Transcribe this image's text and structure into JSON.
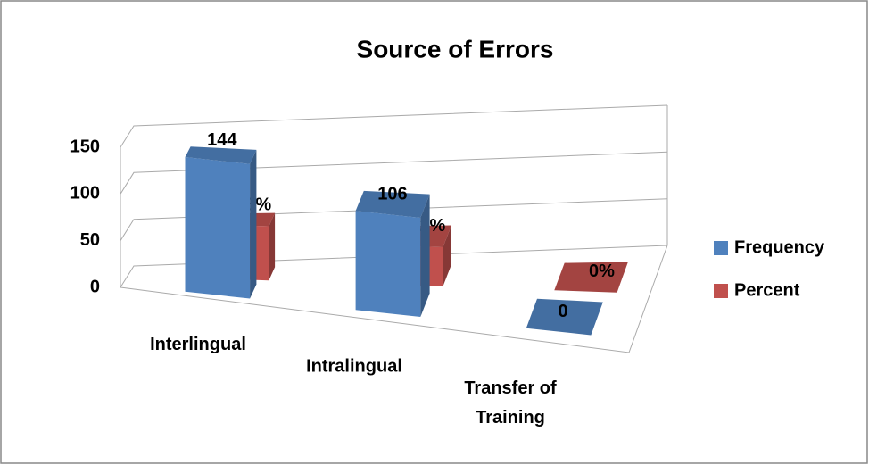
{
  "chart_data": {
    "type": "bar3d",
    "title": "Source of Errors",
    "categories": [
      "Interlingual",
      "Intralingual",
      "Transfer of Training"
    ],
    "series": [
      {
        "name": "Frequency",
        "color": "#4f81bd",
        "values": [
          144,
          106,
          0
        ],
        "value_labels": [
          "144",
          "106",
          "0"
        ]
      },
      {
        "name": "Percent",
        "color": "#c0504d",
        "values": [
          58,
          42,
          0
        ],
        "value_labels": [
          "58%",
          "42%",
          "0%"
        ]
      }
    ],
    "ylim": [
      0,
      150
    ],
    "yticks": [
      0,
      50,
      100,
      150
    ],
    "grid": true,
    "legend": "right"
  }
}
